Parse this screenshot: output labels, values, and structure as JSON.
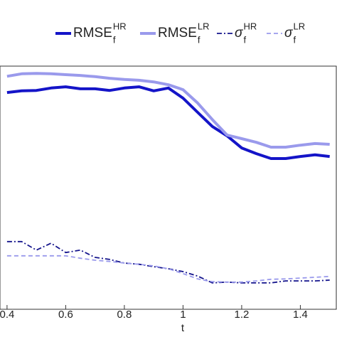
{
  "chart_data": {
    "type": "line",
    "xlabel": "t",
    "x": [
      0.4,
      0.45,
      0.5,
      0.55,
      0.6,
      0.65,
      0.7,
      0.75,
      0.8,
      0.85,
      0.9,
      0.95,
      1.0,
      1.05,
      1.1,
      1.15,
      1.2,
      1.25,
      1.3,
      1.35,
      1.4,
      1.45,
      1.5
    ],
    "xlim": [
      0.376,
      1.525
    ],
    "xticks": [
      0.4,
      0.6,
      0.8,
      1,
      1.2,
      1.4
    ],
    "ylim": [
      0,
      6
    ],
    "grid": false,
    "series": [
      {
        "name": "RMSE",
        "subscript": "f",
        "superscript": "HR",
        "color": "#1414c8",
        "linestyle": "solid",
        "values": [
          5.35,
          5.39,
          5.4,
          5.46,
          5.49,
          5.44,
          5.44,
          5.4,
          5.46,
          5.49,
          5.39,
          5.46,
          5.21,
          4.86,
          4.51,
          4.28,
          3.98,
          3.84,
          3.72,
          3.72,
          3.77,
          3.81,
          3.77
        ]
      },
      {
        "name": "RMSE",
        "subscript": "f",
        "superscript": "LR",
        "color": "#9a9aec",
        "linestyle": "solid",
        "values": [
          5.75,
          5.81,
          5.82,
          5.81,
          5.79,
          5.77,
          5.74,
          5.7,
          5.67,
          5.65,
          5.61,
          5.54,
          5.42,
          5.09,
          4.68,
          4.3,
          4.21,
          4.12,
          4.0,
          4.0,
          4.05,
          4.09,
          4.07
        ]
      },
      {
        "name": "σ",
        "subscript": "f",
        "superscript": "HR",
        "color": "#14148c",
        "linestyle": "dashdot",
        "values": [
          1.67,
          1.67,
          1.46,
          1.63,
          1.4,
          1.46,
          1.28,
          1.23,
          1.14,
          1.11,
          1.05,
          1.0,
          0.93,
          0.82,
          0.65,
          0.67,
          0.65,
          0.65,
          0.65,
          0.7,
          0.7,
          0.7,
          0.72
        ]
      },
      {
        "name": "σ",
        "subscript": "f",
        "superscript": "LR",
        "color": "#9a9aec",
        "linestyle": "dashed",
        "values": [
          1.32,
          1.32,
          1.32,
          1.32,
          1.32,
          1.26,
          1.21,
          1.18,
          1.14,
          1.11,
          1.07,
          1.0,
          0.88,
          0.75,
          0.68,
          0.67,
          0.67,
          0.7,
          0.74,
          0.75,
          0.77,
          0.79,
          0.81
        ]
      }
    ]
  }
}
